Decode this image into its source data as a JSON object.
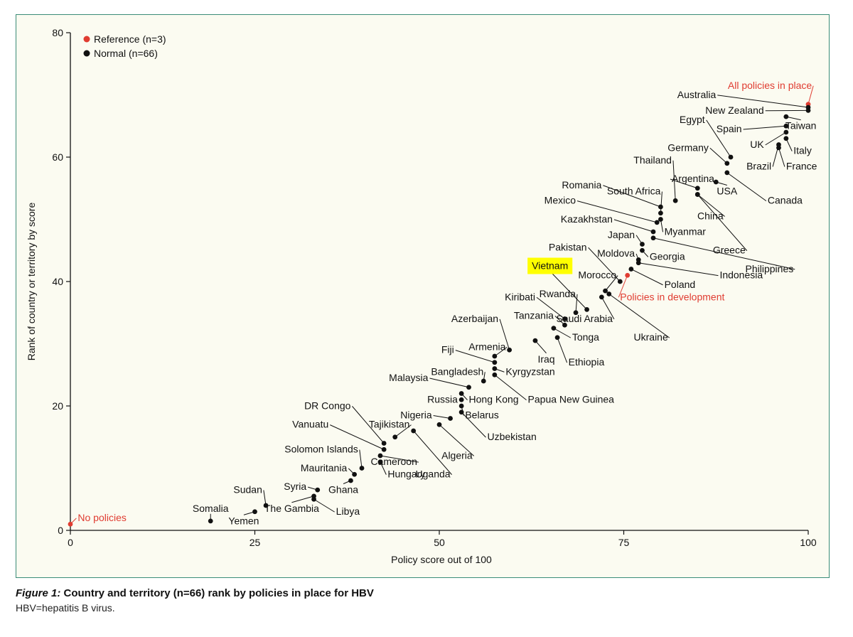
{
  "caption": {
    "figure_label": "Figure 1:",
    "title": "Country and territory (n=66) rank by policies in place for HBV",
    "note": "HBV=hepatitis B virus."
  },
  "colors": {
    "reference": "#e03c31",
    "normal": "#111111",
    "highlight": "#ffff00",
    "panel_bg": "#fbfbf1",
    "panel_border": "#3a8c77"
  },
  "chart_data": {
    "type": "scatter",
    "title": "",
    "xlabel": "Policy score out of 100",
    "ylabel": "Rank of country or territory by score",
    "xlim": [
      0,
      100
    ],
    "ylim": [
      0,
      80
    ],
    "xticks": [
      0,
      25,
      50,
      75,
      100
    ],
    "yticks": [
      0,
      20,
      40,
      60,
      80
    ],
    "grid": false,
    "legend": {
      "placement": "top-left",
      "entries": [
        {
          "label": "Reference (n=3)",
          "color": "#e03c31"
        },
        {
          "label": "Normal (n=66)",
          "color": "#111111"
        }
      ]
    },
    "highlight": "Vietnam",
    "series": [
      {
        "name": "Reference (n=3)",
        "color": "#e03c31",
        "points": [
          {
            "label": "No policies",
            "x": 0,
            "y": 1,
            "lx": 1,
            "ly": 1.5,
            "anchor": "start"
          },
          {
            "label": "Policies in development",
            "x": 75.5,
            "y": 41,
            "lx": 74.5,
            "ly": 37,
            "anchor": "start"
          },
          {
            "label": "All policies in place",
            "x": 100,
            "y": 68.5,
            "lx": 100.5,
            "ly": 71,
            "anchor": "end"
          }
        ]
      },
      {
        "name": "Normal (n=66)",
        "color": "#111111",
        "points": [
          {
            "label": "Australia",
            "x": 100,
            "y": 68,
            "lx": 87.5,
            "ly": 69.5,
            "anchor": "end"
          },
          {
            "label": "New Zealand",
            "x": 100,
            "y": 67.5,
            "lx": 94,
            "ly": 67,
            "anchor": "end"
          },
          {
            "label": "Taiwan",
            "x": 97,
            "y": 66.5,
            "lx": 99,
            "ly": 64.5,
            "anchor": "middle"
          },
          {
            "label": "Spain",
            "x": 97,
            "y": 65,
            "lx": 91,
            "ly": 64,
            "anchor": "end"
          },
          {
            "label": "Egypt",
            "x": 89.5,
            "y": 60,
            "lx": 86,
            "ly": 65.5,
            "anchor": "end"
          },
          {
            "label": "UK",
            "x": 97,
            "y": 64,
            "lx": 94,
            "ly": 61.5,
            "anchor": "end"
          },
          {
            "label": "Italy",
            "x": 97,
            "y": 63,
            "lx": 98,
            "ly": 60.5,
            "anchor": "start"
          },
          {
            "label": "Germany",
            "x": 89,
            "y": 59,
            "lx": 86.5,
            "ly": 61,
            "anchor": "end"
          },
          {
            "label": "Brazil",
            "x": 96,
            "y": 62,
            "lx": 95,
            "ly": 58,
            "anchor": "end"
          },
          {
            "label": "France",
            "x": 96,
            "y": 61.5,
            "lx": 97,
            "ly": 58,
            "anchor": "start"
          },
          {
            "label": "Thailand",
            "x": 82,
            "y": 53,
            "lx": 81.5,
            "ly": 59,
            "anchor": "end"
          },
          {
            "label": "Argentina",
            "x": 85,
            "y": 55,
            "lx": 81.5,
            "ly": 56,
            "anchor": "start"
          },
          {
            "label": "USA",
            "x": 87.5,
            "y": 56,
            "lx": 89,
            "ly": 54,
            "anchor": "middle"
          },
          {
            "label": "Canada",
            "x": 89,
            "y": 57.5,
            "lx": 94.5,
            "ly": 52.5,
            "anchor": "start"
          },
          {
            "label": "China",
            "x": 85,
            "y": 54,
            "lx": 88.5,
            "ly": 50,
            "anchor": "end"
          },
          {
            "label": "Romania",
            "x": 80,
            "y": 52,
            "lx": 72,
            "ly": 55,
            "anchor": "end"
          },
          {
            "label": "South Africa",
            "x": 80,
            "y": 51,
            "lx": 80,
            "ly": 54,
            "anchor": "end"
          },
          {
            "label": "Mexico",
            "x": 79.5,
            "y": 49.5,
            "lx": 68.5,
            "ly": 52.5,
            "anchor": "end"
          },
          {
            "label": "Myanmar",
            "x": 80,
            "y": 50,
            "lx": 80.5,
            "ly": 47.5,
            "anchor": "start"
          },
          {
            "label": "Kazakhstan",
            "x": 79,
            "y": 48,
            "lx": 73.5,
            "ly": 49.5,
            "anchor": "end"
          },
          {
            "label": "Japan",
            "x": 77.5,
            "y": 46,
            "lx": 76.5,
            "ly": 47,
            "anchor": "end"
          },
          {
            "label": "Greece",
            "x": 85,
            "y": 54,
            "lx": 91.5,
            "ly": 44.5,
            "anchor": "end"
          },
          {
            "label": "Georgia",
            "x": 77.5,
            "y": 45,
            "lx": 78.5,
            "ly": 43.5,
            "anchor": "start"
          },
          {
            "label": "Philippines",
            "x": 79,
            "y": 47,
            "lx": 98,
            "ly": 41.5,
            "anchor": "end"
          },
          {
            "label": "Pakistan",
            "x": 74.5,
            "y": 40,
            "lx": 70,
            "ly": 45,
            "anchor": "end"
          },
          {
            "label": "Moldova",
            "x": 77,
            "y": 43.5,
            "lx": 76.5,
            "ly": 44,
            "anchor": "end"
          },
          {
            "label": "Indonesia",
            "x": 77,
            "y": 43,
            "lx": 88,
            "ly": 40.5,
            "anchor": "start"
          },
          {
            "label": "Poland",
            "x": 76,
            "y": 42,
            "lx": 80.5,
            "ly": 39,
            "anchor": "start"
          },
          {
            "label": "Vietnam",
            "x": 70,
            "y": 35.5,
            "lx": 65,
            "ly": 42,
            "anchor": "middle"
          },
          {
            "label": "Morocco",
            "x": 72.5,
            "y": 38.5,
            "lx": 74,
            "ly": 40.5,
            "anchor": "end"
          },
          {
            "label": "Rwanda",
            "x": 68.5,
            "y": 35,
            "lx": 68.5,
            "ly": 37.5,
            "anchor": "end"
          },
          {
            "label": "Kiribati",
            "x": 67,
            "y": 34,
            "lx": 63,
            "ly": 37,
            "anchor": "end"
          },
          {
            "label": "Saudi Arabia",
            "x": 72,
            "y": 37.5,
            "lx": 73.5,
            "ly": 33.5,
            "anchor": "end"
          },
          {
            "label": "Tanzania",
            "x": 67,
            "y": 33,
            "lx": 65.5,
            "ly": 34,
            "anchor": "end"
          },
          {
            "label": "Ukraine",
            "x": 73,
            "y": 38,
            "lx": 81,
            "ly": 30.5,
            "anchor": "end"
          },
          {
            "label": "Tonga",
            "x": 65.5,
            "y": 32.5,
            "lx": 68,
            "ly": 30.5,
            "anchor": "start"
          },
          {
            "label": "Azerbaijan",
            "x": 59.5,
            "y": 29,
            "lx": 58,
            "ly": 33.5,
            "anchor": "end"
          },
          {
            "label": "Iraq",
            "x": 63,
            "y": 30.5,
            "lx": 64.5,
            "ly": 27,
            "anchor": "middle"
          },
          {
            "label": "Ethiopia",
            "x": 66,
            "y": 31,
            "lx": 67.5,
            "ly": 26.5,
            "anchor": "start"
          },
          {
            "label": "Armenia",
            "x": 57.5,
            "y": 28,
            "lx": 59,
            "ly": 29,
            "anchor": "end"
          },
          {
            "label": "Fiji",
            "x": 57.5,
            "y": 27,
            "lx": 52,
            "ly": 28.5,
            "anchor": "end"
          },
          {
            "label": "Kyrgyzstan",
            "x": 57.5,
            "y": 26,
            "lx": 59,
            "ly": 25,
            "anchor": "start"
          },
          {
            "label": "Bangladesh",
            "x": 56,
            "y": 24,
            "lx": 56,
            "ly": 25,
            "anchor": "end"
          },
          {
            "label": "Malaysia",
            "x": 54,
            "y": 23,
            "lx": 48.5,
            "ly": 24,
            "anchor": "end"
          },
          {
            "label": "Hong Kong",
            "x": 53,
            "y": 22,
            "lx": 54,
            "ly": 20.5,
            "anchor": "start"
          },
          {
            "label": "Papua New Guinea",
            "x": 57.5,
            "y": 25,
            "lx": 62,
            "ly": 20.5,
            "anchor": "start"
          },
          {
            "label": "Russia",
            "x": 53,
            "y": 21,
            "lx": 52.5,
            "ly": 20.5,
            "anchor": "end"
          },
          {
            "label": "Belarus",
            "x": 53,
            "y": 20,
            "lx": 53.5,
            "ly": 18,
            "anchor": "start"
          },
          {
            "label": "DR Congo",
            "x": 42.5,
            "y": 14,
            "lx": 38,
            "ly": 19.5,
            "anchor": "end"
          },
          {
            "label": "Nigeria",
            "x": 51.5,
            "y": 18,
            "lx": 49,
            "ly": 18,
            "anchor": "end"
          },
          {
            "label": "Tajikistan",
            "x": 44,
            "y": 15,
            "lx": 46,
            "ly": 16.5,
            "anchor": "end"
          },
          {
            "label": "Uzbekistan",
            "x": 53,
            "y": 19,
            "lx": 56.5,
            "ly": 14.5,
            "anchor": "start"
          },
          {
            "label": "Vanuatu",
            "x": 42.5,
            "y": 13,
            "lx": 35,
            "ly": 16.5,
            "anchor": "end"
          },
          {
            "label": "Algeria",
            "x": 50,
            "y": 17,
            "lx": 54.5,
            "ly": 11.5,
            "anchor": "end"
          },
          {
            "label": "Solomon Islands",
            "x": 39.5,
            "y": 10,
            "lx": 39,
            "ly": 12.5,
            "anchor": "end"
          },
          {
            "label": "Cameroon",
            "x": 42,
            "y": 12,
            "lx": 47,
            "ly": 10.5,
            "anchor": "end"
          },
          {
            "label": "Uganda",
            "x": 46.5,
            "y": 16,
            "lx": 51.5,
            "ly": 8.5,
            "anchor": "end"
          },
          {
            "label": "Mauritania",
            "x": 38.5,
            "y": 9,
            "lx": 37.5,
            "ly": 9.5,
            "anchor": "end"
          },
          {
            "label": "Hungary",
            "x": 42,
            "y": 11,
            "lx": 43,
            "ly": 8.5,
            "anchor": "start"
          },
          {
            "label": "Syria",
            "x": 33.5,
            "y": 6.5,
            "lx": 32,
            "ly": 6.5,
            "anchor": "end"
          },
          {
            "label": "Ghana",
            "x": 38,
            "y": 8,
            "lx": 37,
            "ly": 6,
            "anchor": "middle"
          },
          {
            "label": "Sudan",
            "x": 26.5,
            "y": 4,
            "lx": 26,
            "ly": 6,
            "anchor": "end"
          },
          {
            "label": "The Gambia",
            "x": 33,
            "y": 5.5,
            "lx": 30,
            "ly": 3,
            "anchor": "middle"
          },
          {
            "label": "Libya",
            "x": 33,
            "y": 5,
            "lx": 36,
            "ly": 2.5,
            "anchor": "start"
          },
          {
            "label": "Somalia",
            "x": 19,
            "y": 1.5,
            "lx": 19,
            "ly": 3,
            "anchor": "middle"
          },
          {
            "label": "Yemen",
            "x": 25,
            "y": 3,
            "lx": 23.5,
            "ly": 1,
            "anchor": "middle"
          }
        ]
      }
    ]
  }
}
